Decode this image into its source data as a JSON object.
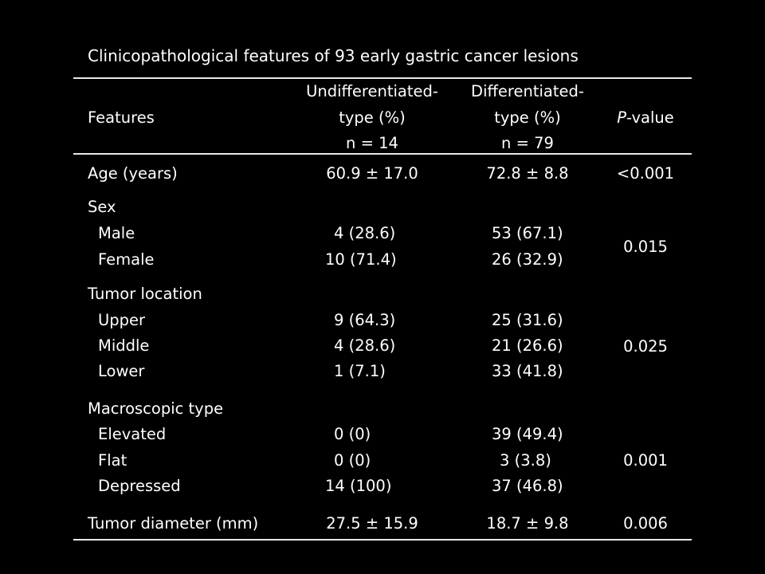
{
  "title": "Clinicopathological features of 93 early gastric cancer lesions",
  "header": {
    "features": "Features",
    "undiff_line1": "Undifferentiated-",
    "undiff_line2": "type (%)",
    "undiff_line3": "n = 14",
    "diff_line1": "Differentiated-",
    "diff_line2": "type (%)",
    "diff_line3": "n = 79",
    "p_italic": "P",
    "p_rest": "-value"
  },
  "age": {
    "label": "Age (years)",
    "undiff": "60.9 ± 17.0",
    "diff": "72.8 ± 8.8",
    "p": "<0.001"
  },
  "sex": {
    "label": "Sex",
    "rows": [
      {
        "label": "Male",
        "undiff": "4 (28.6)",
        "diff": "53 (67.1)"
      },
      {
        "label": "Female",
        "undiff": "10 (71.4)",
        "diff": "26 (32.9)"
      }
    ],
    "p": "0.015"
  },
  "location": {
    "label": "Tumor location",
    "rows": [
      {
        "label": "Upper",
        "undiff": "9 (64.3)",
        "diff": "25 (31.6)"
      },
      {
        "label": "Middle",
        "undiff": "4 (28.6)",
        "diff": "21 (26.6)"
      },
      {
        "label": "Lower",
        "undiff": "1 (7.1)",
        "diff": "33 (41.8)"
      }
    ],
    "p": "0.025"
  },
  "macro": {
    "label": "Macroscopic type",
    "rows": [
      {
        "label": "Elevated",
        "undiff": "0 (0)",
        "diff": "39 (49.4)"
      },
      {
        "label": "Flat",
        "undiff": "0 (0)",
        "diff": "3 (3.8)"
      },
      {
        "label": "Depressed",
        "undiff": "14 (100)",
        "diff": "37 (46.8)"
      }
    ],
    "p": "0.001"
  },
  "diameter": {
    "label": "Tumor diameter (mm)",
    "undiff": "27.5 ± 15.9",
    "diff": "18.7 ± 9.8",
    "p": "0.006"
  }
}
